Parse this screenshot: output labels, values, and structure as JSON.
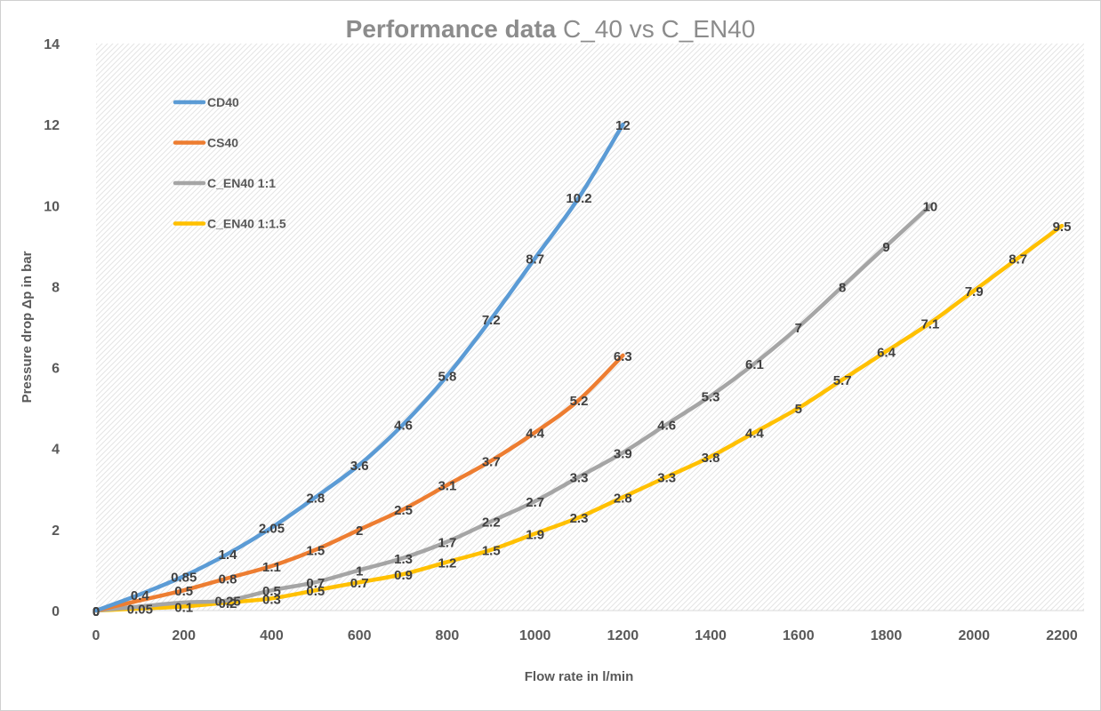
{
  "chart_data": {
    "type": "line",
    "title_bold": "Performance data",
    "title_rest": " C_40 vs C_EN40",
    "xlabel": "Flow rate in l/min",
    "ylabel": "Pressure drop Δp in bar",
    "xlim": [
      0,
      2200
    ],
    "ylim": [
      0,
      14
    ],
    "xticks": [
      0,
      200,
      400,
      600,
      800,
      1000,
      1200,
      1400,
      1600,
      1800,
      2000,
      2200
    ],
    "yticks": [
      0,
      2,
      4,
      6,
      8,
      10,
      12,
      14
    ],
    "grid": false,
    "plot_background": "light diagonal hatch",
    "legend_position": "top-left",
    "series": [
      {
        "name": "CD40",
        "color": "#5b9bd5",
        "x": [
          0,
          100,
          200,
          300,
          400,
          500,
          600,
          700,
          800,
          900,
          1000,
          1100,
          1200
        ],
        "y": [
          0,
          0.4,
          0.85,
          1.4,
          2.05,
          2.8,
          3.6,
          4.6,
          5.8,
          7.2,
          8.7,
          10.2,
          12
        ],
        "labels": [
          "0",
          "0.4",
          "0.85",
          "1.4",
          "2.05",
          "2.8",
          "3.6",
          "4.6",
          "5.8",
          "7.2",
          "8.7",
          "10.2",
          "12"
        ]
      },
      {
        "name": "CS40",
        "color": "#ed7d31",
        "x": [
          0,
          100,
          200,
          300,
          400,
          500,
          600,
          700,
          800,
          900,
          1000,
          1100,
          1200
        ],
        "y": [
          0,
          0.25,
          0.5,
          0.8,
          1.1,
          1.5,
          2,
          2.5,
          3.1,
          3.7,
          4.4,
          5.2,
          6.3
        ],
        "labels": [
          "0",
          "",
          "0.5",
          "0.8",
          "1.1",
          "1.5",
          "2",
          "2.5",
          "3.1",
          "3.7",
          "4.4",
          "5.2",
          "6.3"
        ]
      },
      {
        "name": "C_EN40 1:1",
        "color": "#a5a5a5",
        "x": [
          0,
          100,
          200,
          300,
          400,
          500,
          600,
          700,
          800,
          900,
          1000,
          1100,
          1200,
          1300,
          1400,
          1500,
          1600,
          1700,
          1800,
          1900
        ],
        "y": [
          0,
          0.1,
          0.2,
          0.25,
          0.5,
          0.7,
          1,
          1.3,
          1.7,
          2.2,
          2.7,
          3.3,
          3.9,
          4.6,
          5.3,
          6.1,
          7,
          8,
          9,
          10
        ],
        "labels": [
          "0",
          "",
          "",
          "0.25",
          "0.5",
          "0.7",
          "1",
          "1.3",
          "1.7",
          "2.2",
          "2.7",
          "3.3",
          "3.9",
          "4.6",
          "5.3",
          "6.1",
          "7",
          "8",
          "9",
          "10"
        ]
      },
      {
        "name": "C_EN40 1:1.5",
        "color": "#ffc000",
        "x": [
          0,
          100,
          200,
          300,
          400,
          500,
          600,
          700,
          800,
          900,
          1000,
          1100,
          1200,
          1300,
          1400,
          1500,
          1600,
          1700,
          1800,
          1900,
          2000,
          2100,
          2200
        ],
        "y": [
          0,
          0.05,
          0.1,
          0.2,
          0.3,
          0.5,
          0.7,
          0.9,
          1.2,
          1.5,
          1.9,
          2.3,
          2.8,
          3.3,
          3.8,
          4.4,
          5,
          5.7,
          6.4,
          7.1,
          7.9,
          8.7,
          9.5
        ],
        "labels": [
          "0",
          "0.05",
          "0.1",
          "0.2",
          "0.3",
          "0.5",
          "0.7",
          "0.9",
          "1.2",
          "1.5",
          "1.9",
          "2.3",
          "2.8",
          "3.3",
          "3.8",
          "4.4",
          "5",
          "5.7",
          "6.4",
          "7.1",
          "7.9",
          "8.7",
          "9.5"
        ]
      }
    ]
  }
}
